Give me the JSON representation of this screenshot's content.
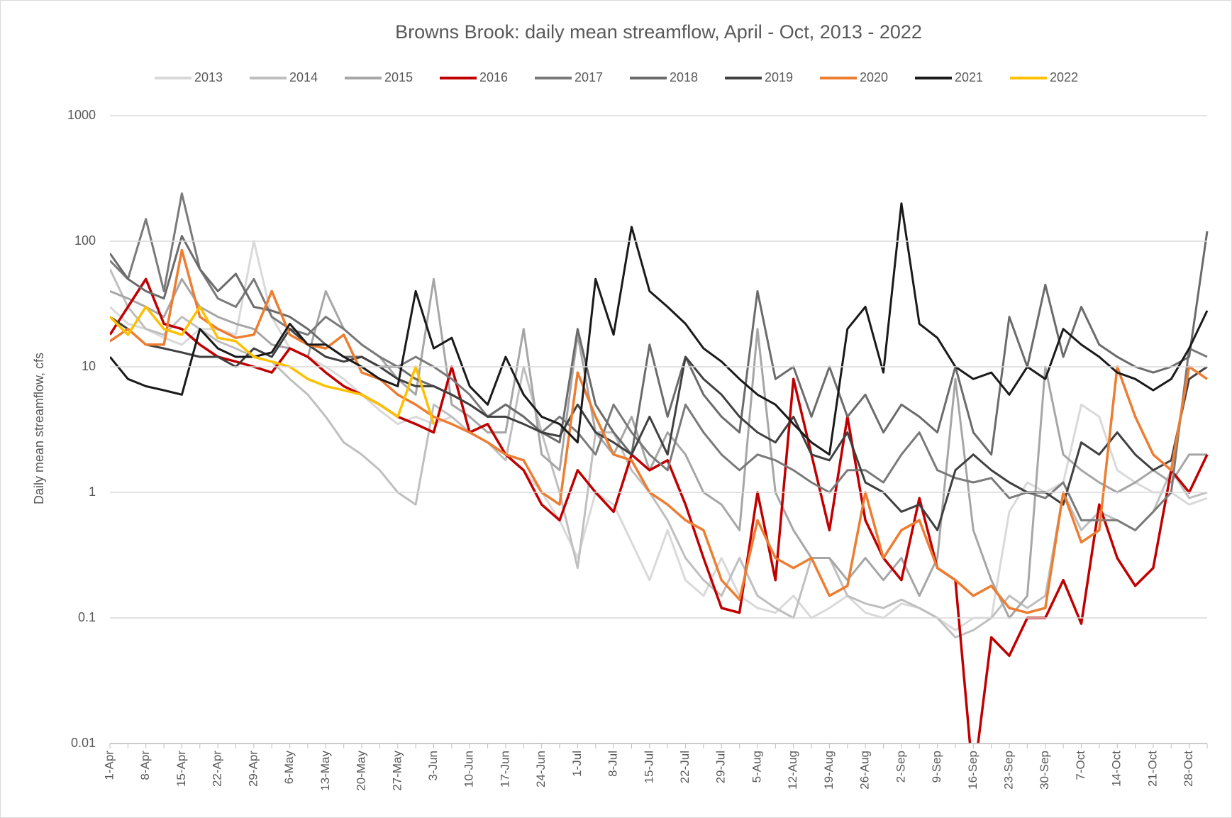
{
  "chart_data": {
    "type": "line",
    "title": "Browns Brook: daily mean streamflow, April - Oct, 2013 - 2022",
    "y_label": "Daily mean streamflow, cfs",
    "log_scale": true,
    "grid": true,
    "legend": "top",
    "ylim": [
      0.01,
      1000
    ],
    "yticks": [
      0.01,
      0.1,
      1,
      10,
      100,
      1000
    ],
    "categories": [
      "1-Apr",
      null,
      "8-Apr",
      null,
      "15-Apr",
      null,
      "22-Apr",
      null,
      "29-Apr",
      null,
      "6-May",
      null,
      "13-May",
      null,
      "20-May",
      null,
      "27-May",
      null,
      "3-Jun",
      null,
      "10-Jun",
      null,
      "17-Jun",
      null,
      "24-Jun",
      null,
      "1-Jul",
      null,
      "8-Jul",
      null,
      "15-Jul",
      null,
      "22-Jul",
      null,
      "29-Jul",
      null,
      "5-Aug",
      null,
      "12-Aug",
      null,
      "19-Aug",
      null,
      "26-Aug",
      null,
      "2-Sep",
      null,
      "9-Sep",
      null,
      "16-Sep",
      null,
      "23-Sep",
      null,
      "30-Sep",
      null,
      "7-Oct",
      null,
      "14-Oct",
      null,
      "21-Oct",
      null,
      "28-Oct",
      null
    ],
    "series": [
      {
        "name": "2013",
        "color": "#d9d9d9",
        "values": [
          30,
          22,
          20,
          17,
          15,
          20,
          20,
          18,
          100,
          25,
          14,
          12,
          10,
          8,
          6,
          4.5,
          3.5,
          4,
          3.5,
          4,
          3,
          2.5,
          2,
          1.5,
          1,
          0.6,
          0.3,
          1,
          0.8,
          0.4,
          0.2,
          0.5,
          0.2,
          0.15,
          0.3,
          0.15,
          0.12,
          0.11,
          0.15,
          0.1,
          0.12,
          0.15,
          0.11,
          0.1,
          0.13,
          0.12,
          0.1,
          0.08,
          0.1,
          0.1,
          0.7,
          1.2,
          1,
          1.2,
          5,
          4,
          1.5,
          1.2,
          1,
          1,
          0.8,
          0.9
        ]
      },
      {
        "name": "2014",
        "color": "#bfbfbf",
        "values": [
          60,
          30,
          20,
          18,
          25,
          20,
          16,
          14,
          12,
          11,
          8,
          6,
          4,
          2.5,
          2,
          1.5,
          1,
          0.8,
          5,
          4,
          3,
          2.5,
          1.8,
          10,
          3,
          1,
          0.25,
          3,
          3,
          1.5,
          1,
          0.6,
          0.3,
          0.2,
          0.15,
          0.3,
          0.15,
          0.12,
          0.1,
          0.3,
          0.3,
          0.15,
          0.13,
          0.12,
          0.14,
          0.12,
          0.1,
          0.07,
          0.08,
          0.1,
          0.15,
          0.12,
          0.15,
          1,
          0.5,
          0.7,
          0.6,
          0.5,
          0.7,
          1.5,
          0.9,
          1
        ]
      },
      {
        "name": "2015",
        "color": "#a6a6a6",
        "values": [
          40,
          35,
          30,
          25,
          50,
          30,
          25,
          22,
          20,
          15,
          14,
          12,
          40,
          20,
          15,
          12,
          8,
          6,
          50,
          5,
          4,
          3,
          3,
          20,
          2,
          1.5,
          18,
          3,
          2,
          4,
          1.5,
          3,
          2,
          1,
          0.8,
          0.5,
          20,
          1,
          0.5,
          0.3,
          0.3,
          0.2,
          0.3,
          0.2,
          0.3,
          0.15,
          0.3,
          8,
          0.5,
          0.2,
          0.1,
          0.15,
          10,
          2,
          1.5,
          1.2,
          1,
          1.2,
          1.5,
          1.2,
          2,
          2
        ]
      },
      {
        "name": "2016",
        "color": "#c00000",
        "values": [
          18,
          30,
          50,
          22,
          20,
          15,
          12,
          11,
          10,
          9,
          14,
          12,
          9,
          7,
          6,
          5,
          4,
          3.5,
          3,
          10,
          3,
          3.5,
          2,
          1.5,
          0.8,
          0.6,
          1.5,
          1,
          0.7,
          2,
          1.5,
          1.8,
          0.8,
          0.3,
          0.12,
          0.11,
          1,
          0.2,
          8,
          2,
          0.5,
          4,
          0.6,
          0.3,
          0.2,
          0.9,
          0.25,
          0.2,
          0.005,
          0.07,
          0.05,
          0.1,
          0.1,
          0.2,
          0.09,
          0.8,
          0.3,
          0.18,
          0.25,
          1.5,
          1,
          2
        ]
      },
      {
        "name": "2017",
        "color": "#7a7a7a",
        "values": [
          70,
          50,
          150,
          40,
          240,
          60,
          35,
          30,
          50,
          25,
          20,
          18,
          25,
          20,
          15,
          12,
          10,
          12,
          10,
          8,
          6,
          4,
          5,
          4,
          3,
          4,
          3,
          2,
          5,
          3,
          2,
          1.5,
          5,
          3,
          2,
          1.5,
          2,
          1.8,
          1.5,
          1.2,
          1,
          1.5,
          1.5,
          1.2,
          2,
          3,
          1.5,
          1.3,
          1.2,
          1.3,
          0.9,
          1,
          0.9,
          1.2,
          0.6,
          0.6,
          0.6,
          0.5,
          0.7,
          1,
          14,
          12
        ]
      },
      {
        "name": "2018",
        "color": "#6b6b6b",
        "values": [
          80,
          50,
          40,
          35,
          110,
          60,
          40,
          55,
          30,
          28,
          25,
          20,
          15,
          12,
          12,
          10,
          10,
          8,
          7,
          6,
          5,
          4,
          5,
          4,
          3,
          2.5,
          20,
          5,
          3,
          2,
          15,
          4,
          12,
          6,
          4,
          3,
          40,
          8,
          10,
          4,
          10,
          4,
          6,
          3,
          5,
          4,
          3,
          10,
          3,
          2,
          25,
          10,
          45,
          12,
          30,
          15,
          12,
          10,
          9,
          10,
          12,
          120
        ]
      },
      {
        "name": "2019",
        "color": "#404040",
        "values": [
          25,
          20,
          15,
          14,
          13,
          12,
          12,
          10,
          14,
          12,
          20,
          15,
          12,
          11,
          12,
          10,
          8,
          7,
          7,
          6,
          5,
          4,
          4,
          3.5,
          3,
          2.8,
          5,
          3,
          2.5,
          2,
          4,
          2,
          12,
          8,
          6,
          4,
          3,
          2.5,
          4,
          2,
          1.8,
          3,
          1.2,
          1,
          0.7,
          0.8,
          0.5,
          1.5,
          2,
          1.5,
          1.2,
          1,
          1,
          0.8,
          2.5,
          2,
          3,
          2,
          1.5,
          1.8,
          8,
          10
        ]
      },
      {
        "name": "2020",
        "color": "#ed7d31",
        "values": [
          16,
          20,
          15,
          15,
          85,
          25,
          20,
          17,
          18,
          40,
          18,
          15,
          14,
          18,
          9,
          8,
          6,
          5,
          4,
          3.5,
          3,
          2.5,
          2,
          1.8,
          1,
          0.8,
          9,
          4,
          2,
          1.8,
          1,
          0.8,
          0.6,
          0.5,
          0.2,
          0.14,
          0.6,
          0.3,
          0.25,
          0.3,
          0.15,
          0.18,
          1,
          0.3,
          0.5,
          0.6,
          0.25,
          0.2,
          0.15,
          0.18,
          0.12,
          0.11,
          0.12,
          1,
          0.4,
          0.5,
          10,
          4,
          2,
          1.5,
          10,
          8
        ]
      },
      {
        "name": "2021",
        "color": "#1a1a1a",
        "values": [
          12,
          8,
          7,
          6.5,
          6,
          20,
          14,
          12,
          12,
          13,
          22,
          15,
          15,
          12,
          10,
          8,
          7,
          40,
          14,
          17,
          7,
          5,
          12,
          6,
          4,
          3.5,
          2.5,
          50,
          18,
          130,
          40,
          30,
          22,
          14,
          11,
          8,
          6,
          5,
          3.5,
          2.5,
          2,
          20,
          30,
          9,
          200,
          22,
          17,
          10,
          8,
          9,
          6,
          10,
          8,
          20,
          15,
          12,
          9,
          8,
          6.5,
          8,
          14,
          28
        ]
      },
      {
        "name": "2022",
        "color": "#ffc000",
        "values": [
          25,
          18,
          30,
          20,
          18,
          30,
          17,
          16,
          12,
          11,
          10,
          8,
          7,
          6.5,
          6,
          5,
          4,
          10,
          3.5,
          null,
          null,
          null,
          null,
          null,
          null,
          null,
          null,
          null,
          null,
          null,
          null,
          null,
          null,
          null,
          null,
          null,
          null,
          null,
          null,
          null,
          null,
          null,
          null,
          null,
          null,
          null,
          null,
          null,
          null,
          null,
          null,
          null,
          null,
          null,
          null,
          null,
          null,
          null,
          null,
          null,
          null,
          null
        ]
      }
    ]
  }
}
